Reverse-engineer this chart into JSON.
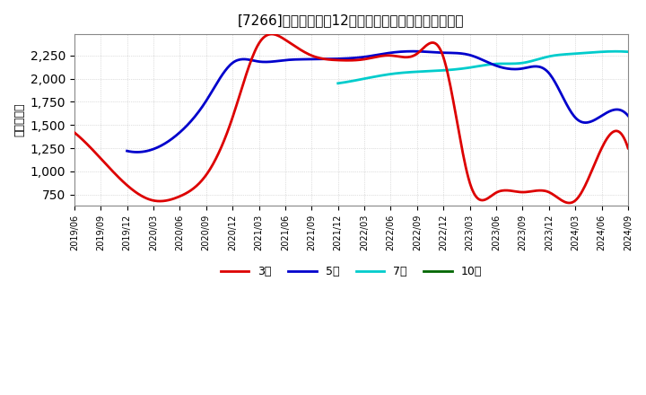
{
  "title": "[7266]　当期純利益12か月移動合計の標準偏差の推移",
  "ylabel": "（百万円）",
  "ylim": [
    630,
    2480
  ],
  "yticks": [
    750,
    1000,
    1250,
    1500,
    1750,
    2000,
    2250
  ],
  "background_color": "#ffffff",
  "plot_bg_color": "#ffffff",
  "grid_color": "#999999",
  "series": {
    "3年": {
      "color": "#dd0000",
      "months": [
        0,
        3,
        6,
        9,
        12,
        15,
        18,
        21,
        24,
        27,
        30,
        33,
        36,
        39,
        42,
        45,
        48,
        51,
        54,
        57,
        60,
        63
      ],
      "values": [
        1420,
        1140,
        850,
        685,
        730,
        960,
        1580,
        2380,
        2420,
        2250,
        2200,
        2210,
        2250,
        2270,
        2230,
        875,
        770,
        775,
        775,
        685,
        1250,
        1250
      ]
    },
    "5年": {
      "color": "#0000cc",
      "months": [
        6,
        9,
        12,
        15,
        18,
        21,
        24,
        27,
        30,
        33,
        36,
        39,
        42,
        45,
        48,
        51,
        54,
        57,
        60,
        63
      ],
      "values": [
        1220,
        1240,
        1420,
        1760,
        2170,
        2185,
        2200,
        2210,
        2215,
        2235,
        2280,
        2295,
        2280,
        2255,
        2140,
        2110,
        2060,
        1580,
        1600,
        1600
      ]
    },
    "7年": {
      "color": "#00cccc",
      "months": [
        30,
        33,
        36,
        39,
        42,
        45,
        48,
        51,
        54,
        57,
        60,
        63
      ],
      "values": [
        1950,
        2000,
        2050,
        2075,
        2090,
        2120,
        2160,
        2170,
        2240,
        2270,
        2290,
        2290
      ]
    },
    "10年": {
      "color": "#006600",
      "months": [],
      "values": []
    }
  },
  "legend_labels": [
    "3年",
    "5年",
    "7年",
    "10年"
  ],
  "legend_colors": [
    "#dd0000",
    "#0000cc",
    "#00cccc",
    "#006600"
  ],
  "x_tick_labels": [
    "2019/06",
    "2019/09",
    "2019/12",
    "2020/03",
    "2020/06",
    "2020/09",
    "2020/12",
    "2021/03",
    "2021/06",
    "2021/09",
    "2021/12",
    "2022/03",
    "2022/06",
    "2022/09",
    "2022/12",
    "2023/03",
    "2023/06",
    "2023/09",
    "2023/12",
    "2024/03",
    "2024/06",
    "2024/09"
  ],
  "x_tick_months": [
    0,
    3,
    6,
    9,
    12,
    15,
    18,
    21,
    24,
    27,
    30,
    33,
    36,
    39,
    42,
    45,
    48,
    51,
    54,
    57,
    60,
    63
  ]
}
